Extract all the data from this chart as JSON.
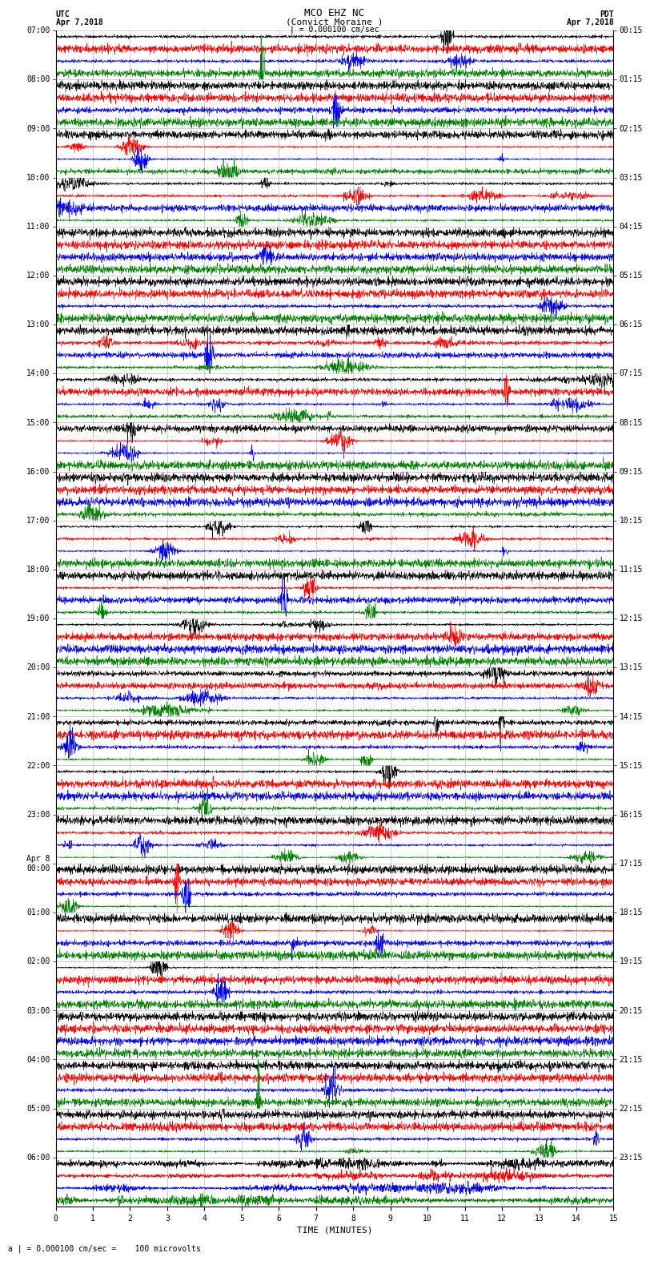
{
  "title_line1": "MCO EHZ NC",
  "title_line2": "(Convict Moraine )",
  "scale_label": "| = 0.000100 cm/sec",
  "left_header_line1": "UTC",
  "left_header_line2": "Apr 7,2018",
  "right_header_line1": "PDT",
  "right_header_line2": "Apr 7,2018",
  "bottom_label": "a | = 0.000100 cm/sec =    100 microvolts",
  "xlabel": "TIME (MINUTES)",
  "colors": [
    "black",
    "red",
    "blue",
    "green"
  ],
  "n_groups": 24,
  "traces_per_group": 4,
  "minutes_range": [
    0,
    15
  ],
  "background_color": "white",
  "grid_color": "#aaaaaa",
  "label_size": 7,
  "title_size": 9,
  "left_labels": [
    "07:00",
    "08:00",
    "09:00",
    "10:00",
    "11:00",
    "12:00",
    "13:00",
    "14:00",
    "15:00",
    "16:00",
    "17:00",
    "18:00",
    "19:00",
    "20:00",
    "21:00",
    "22:00",
    "23:00",
    "Apr 8\n00:00",
    "01:00",
    "02:00",
    "03:00",
    "04:00",
    "05:00",
    "06:00"
  ],
  "right_labels": [
    "00:15",
    "01:15",
    "02:15",
    "03:15",
    "04:15",
    "05:15",
    "06:15",
    "07:15",
    "08:15",
    "09:15",
    "10:15",
    "11:15",
    "12:15",
    "13:15",
    "14:15",
    "15:15",
    "16:15",
    "17:15",
    "18:15",
    "19:15",
    "20:15",
    "21:15",
    "22:15",
    "23:15"
  ],
  "activity_by_group": [
    1.2,
    1.5,
    1.0,
    1.8,
    1.2,
    1.0,
    2.0,
    2.5,
    1.2,
    1.0,
    1.2,
    1.0,
    1.5,
    2.0,
    1.0,
    1.0,
    1.5,
    0.8,
    1.0,
    0.8,
    0.8,
    0.8,
    1.2,
    5.0
  ]
}
